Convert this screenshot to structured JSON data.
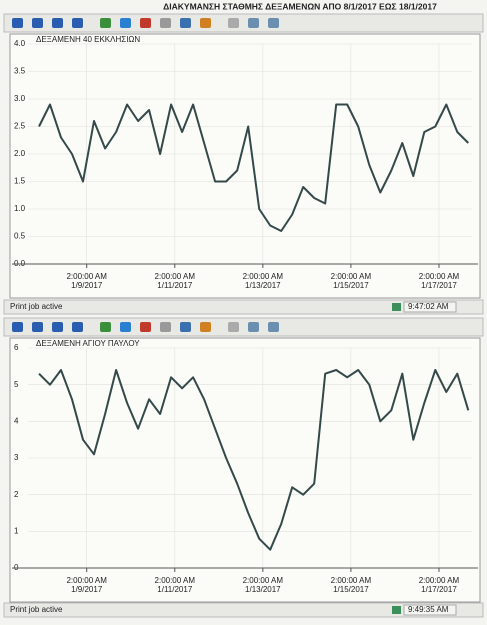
{
  "title": "ΔΙΑΚΥΜΑΝΣΗ ΣΤΑΘΜΗΣ ΔΕΞΑΜΕΝΩΝ ΑΠΟ 8/1/2017 ΕΩΣ 18/1/2017",
  "chart_data": [
    {
      "type": "line",
      "title": "ΔΕΞΑΜΕΝΗ 40 ΕΚΚΛΗΣΙΩΝ",
      "color": "#34494a",
      "grid": true,
      "x": [
        "2017-01-08T00:00",
        "2017-01-08T06:00",
        "2017-01-08T12:00",
        "2017-01-08T18:00",
        "2017-01-09T00:00",
        "2017-01-09T06:00",
        "2017-01-09T12:00",
        "2017-01-09T18:00",
        "2017-01-10T00:00",
        "2017-01-10T06:00",
        "2017-01-10T12:00",
        "2017-01-10T18:00",
        "2017-01-11T00:00",
        "2017-01-11T06:00",
        "2017-01-11T12:00",
        "2017-01-11T18:00",
        "2017-01-12T00:00",
        "2017-01-12T06:00",
        "2017-01-12T12:00",
        "2017-01-12T18:00",
        "2017-01-13T00:00",
        "2017-01-13T06:00",
        "2017-01-13T12:00",
        "2017-01-13T18:00",
        "2017-01-14T00:00",
        "2017-01-14T06:00",
        "2017-01-14T12:00",
        "2017-01-14T18:00",
        "2017-01-15T00:00",
        "2017-01-15T06:00",
        "2017-01-15T12:00",
        "2017-01-15T18:00",
        "2017-01-16T00:00",
        "2017-01-16T06:00",
        "2017-01-16T12:00",
        "2017-01-16T18:00",
        "2017-01-17T00:00",
        "2017-01-17T06:00",
        "2017-01-17T12:00",
        "2017-01-17T18:00"
      ],
      "values": [
        2.5,
        2.9,
        2.3,
        2.0,
        1.5,
        2.6,
        2.1,
        2.4,
        2.9,
        2.6,
        2.8,
        2.0,
        2.9,
        2.4,
        2.9,
        2.2,
        1.5,
        1.5,
        1.7,
        2.5,
        1.0,
        0.7,
        0.6,
        0.9,
        1.4,
        1.2,
        1.1,
        2.9,
        2.9,
        2.5,
        1.8,
        1.3,
        1.7,
        2.2,
        1.6,
        2.4,
        2.5,
        2.9,
        2.4,
        2.2
      ],
      "xlim": [
        "2017-01-07T18:00",
        "2017-01-17T20:00"
      ],
      "xticks": [
        {
          "value": "2017-01-09T02:00",
          "label": "2:00:00 AM\n1/9/2017"
        },
        {
          "value": "2017-01-11T02:00",
          "label": "2:00:00 AM\n1/11/2017"
        },
        {
          "value": "2017-01-13T02:00",
          "label": "2:00:00 AM\n1/13/2017"
        },
        {
          "value": "2017-01-15T02:00",
          "label": "2:00:00 AM\n1/15/2017"
        },
        {
          "value": "2017-01-17T02:00",
          "label": "2:00:00 AM\n1/17/2017"
        }
      ],
      "ylim": [
        0,
        4
      ],
      "yticks": [
        {
          "value": 0,
          "label": "0.0"
        },
        0.5,
        {
          "value": 1,
          "label": "1.0"
        },
        1.5,
        {
          "value": 2,
          "label": "2.0"
        },
        2.5,
        {
          "value": 3,
          "label": "3.0"
        },
        3.5,
        {
          "value": 4,
          "label": "4.0"
        }
      ]
    },
    {
      "type": "line",
      "title": "ΔΕΞΑΜΕΝΗ ΑΓΙΟΥ ΠΑΥΛΟΥ",
      "color": "#34494a",
      "grid": true,
      "x": [
        "2017-01-08T00:00",
        "2017-01-08T06:00",
        "2017-01-08T12:00",
        "2017-01-08T18:00",
        "2017-01-09T00:00",
        "2017-01-09T06:00",
        "2017-01-09T12:00",
        "2017-01-09T18:00",
        "2017-01-10T00:00",
        "2017-01-10T06:00",
        "2017-01-10T12:00",
        "2017-01-10T18:00",
        "2017-01-11T00:00",
        "2017-01-11T06:00",
        "2017-01-11T12:00",
        "2017-01-11T18:00",
        "2017-01-12T00:00",
        "2017-01-12T06:00",
        "2017-01-12T12:00",
        "2017-01-12T18:00",
        "2017-01-13T00:00",
        "2017-01-13T06:00",
        "2017-01-13T12:00",
        "2017-01-13T18:00",
        "2017-01-14T00:00",
        "2017-01-14T06:00",
        "2017-01-14T12:00",
        "2017-01-14T18:00",
        "2017-01-15T00:00",
        "2017-01-15T06:00",
        "2017-01-15T12:00",
        "2017-01-15T18:00",
        "2017-01-16T00:00",
        "2017-01-16T06:00",
        "2017-01-16T12:00",
        "2017-01-16T18:00",
        "2017-01-17T00:00",
        "2017-01-17T06:00",
        "2017-01-17T12:00",
        "2017-01-17T18:00"
      ],
      "values": [
        5.3,
        5.0,
        5.4,
        4.6,
        3.5,
        3.1,
        4.2,
        5.4,
        4.5,
        3.8,
        4.6,
        4.2,
        5.2,
        4.9,
        5.2,
        4.6,
        3.8,
        3.0,
        2.3,
        1.5,
        0.8,
        0.5,
        1.2,
        2.2,
        2.0,
        2.3,
        5.3,
        5.4,
        5.2,
        5.4,
        5.0,
        4.0,
        4.3,
        5.3,
        3.5,
        4.5,
        5.4,
        4.8,
        5.3,
        4.3
      ],
      "xlim": [
        "2017-01-07T18:00",
        "2017-01-17T20:00"
      ],
      "xticks": [
        {
          "value": "2017-01-09T02:00",
          "label": "2:00:00 AM\n1/9/2017"
        },
        {
          "value": "2017-01-11T02:00",
          "label": "2:00:00 AM\n1/11/2017"
        },
        {
          "value": "2017-01-13T02:00",
          "label": "2:00:00 AM\n1/13/2017"
        },
        {
          "value": "2017-01-15T02:00",
          "label": "2:00:00 AM\n1/15/2017"
        },
        {
          "value": "2017-01-17T02:00",
          "label": "2:00:00 AM\n1/17/2017"
        }
      ],
      "ylim": [
        0,
        6
      ],
      "yticks": [
        0,
        1,
        2,
        3,
        4,
        5,
        6
      ]
    }
  ],
  "status_bars": [
    {
      "text": "Print job active",
      "time": "9:47:02 AM"
    },
    {
      "text": "Print job active",
      "time": "9:49:35 AM"
    }
  ]
}
